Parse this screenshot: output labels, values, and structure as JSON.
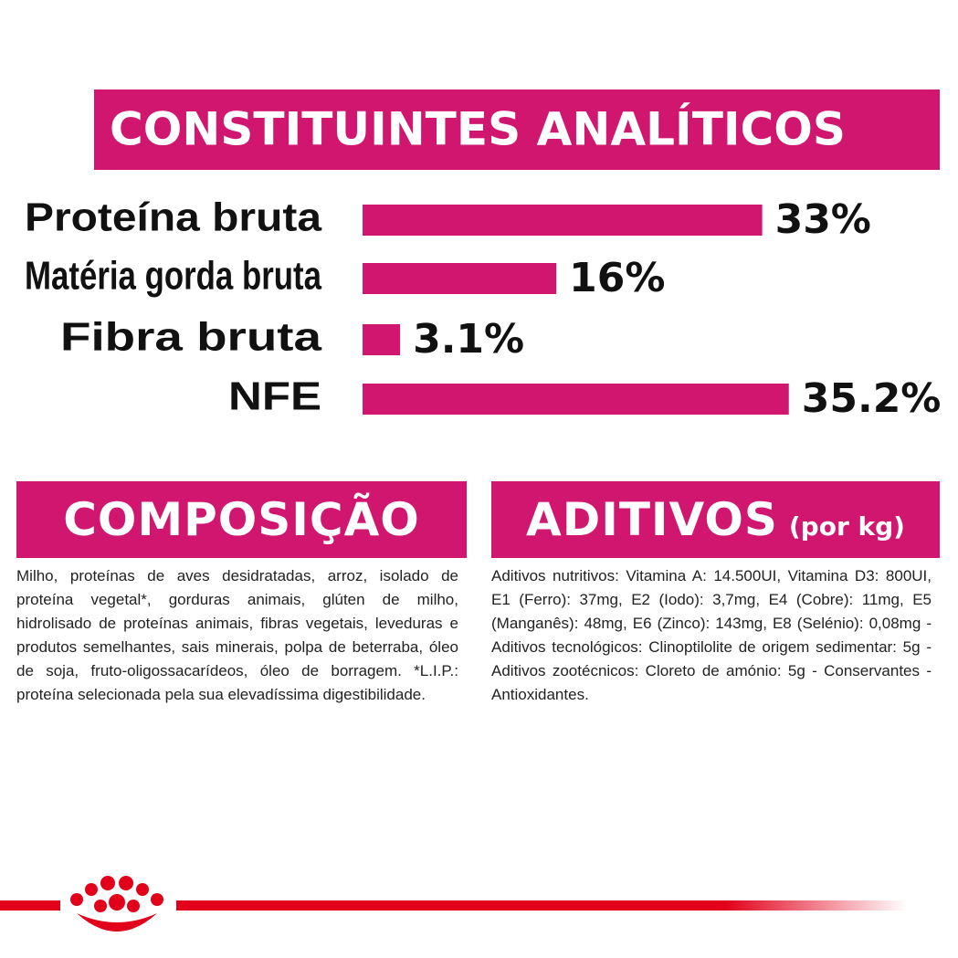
{
  "chart_data": {
    "type": "bar",
    "orientation": "horizontal",
    "title": "CONSTITUINTES ANALÍTICOS",
    "categories": [
      "Proteína bruta",
      "Matéria gorda bruta",
      "Fibra bruta",
      "NFE"
    ],
    "values": [
      33,
      16,
      3.1,
      35.2
    ],
    "value_labels": [
      "33%",
      "16%",
      "3.1%",
      "35.2%"
    ],
    "color": "#d1166f"
  },
  "composicao": {
    "title": "COMPOSIÇÃO",
    "text": "Milho, proteínas de aves desidratadas, arroz, isolado de proteína vegetal*, gorduras animais, glúten de milho, hidrolisado de proteínas animais, fibras vegetais, leveduras e produtos semelhantes, sais minerais, polpa de beterraba, óleo de soja, fruto-oligossacarídeos, óleo de borragem. *L.I.P.: proteína selecionada pela sua elevadíssima digestibilidade."
  },
  "aditivos": {
    "title": "ADITIVOS",
    "subtitle": "(por kg)",
    "text": "Aditivos nutritivos: Vitamina A: 14.500UI, Vitamina D3: 800UI, E1 (Ferro): 37mg, E2 (Iodo): 3,7mg, E4 (Cobre): 11mg, E5 (Manganês): 48mg, E6 (Zinco): 143mg, E8 (Selénio): 0,08mg - Aditivos tecnológicos: Clinoptilolite de origem sedimentar: 5g - Aditivos zootécnicos: Cloreto de amónio: 5g - Conservantes - Antioxidantes."
  }
}
